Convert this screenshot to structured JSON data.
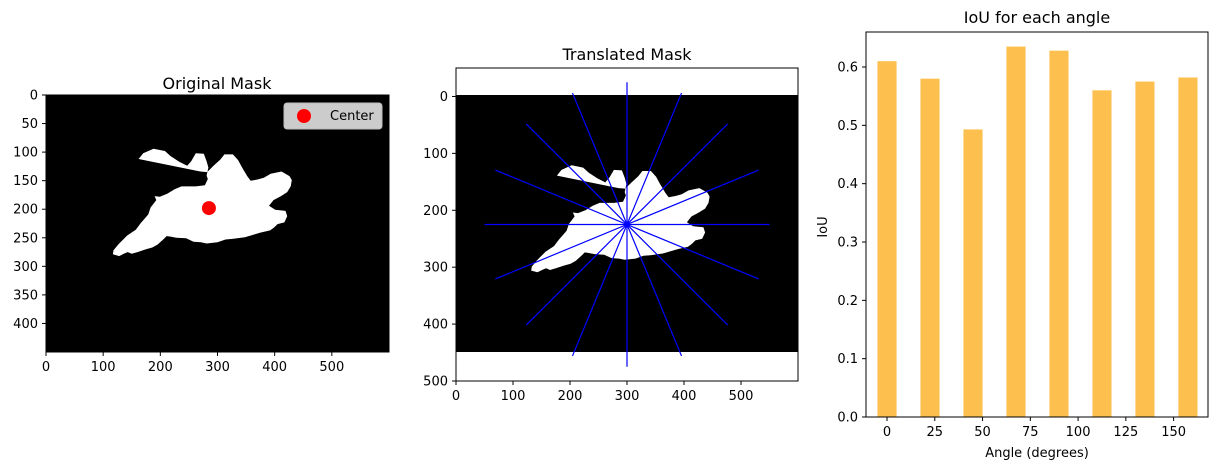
{
  "chart_data": [
    {
      "type": "image",
      "title": "Original Mask",
      "xlim": [
        0,
        600
      ],
      "ylim": [
        450,
        0
      ],
      "xticks": [
        0,
        100,
        200,
        300,
        400,
        500
      ],
      "yticks": [
        0,
        50,
        100,
        150,
        200,
        250,
        300,
        350,
        400
      ],
      "center": [
        285,
        198
      ],
      "legend": {
        "entries": [
          "Center"
        ],
        "position": "top-right",
        "marker_color": "#ff0000"
      },
      "mask_outline": [
        [
          162,
          112
        ],
        [
          170,
          102
        ],
        [
          188,
          94
        ],
        [
          208,
          98
        ],
        [
          218,
          107
        ],
        [
          233,
          117
        ],
        [
          247,
          124
        ],
        [
          254,
          116
        ],
        [
          262,
          102
        ],
        [
          276,
          103
        ],
        [
          281,
          116
        ],
        [
          284,
          127
        ],
        [
          281,
          141
        ],
        [
          283,
          147
        ],
        [
          278,
          158
        ],
        [
          262,
          160
        ],
        [
          237,
          160
        ],
        [
          225,
          165
        ],
        [
          212,
          173
        ],
        [
          199,
          178
        ],
        [
          190,
          177
        ],
        [
          193,
          184
        ],
        [
          183,
          197
        ],
        [
          179,
          209
        ],
        [
          173,
          216
        ],
        [
          166,
          224
        ],
        [
          157,
          236
        ],
        [
          142,
          246
        ],
        [
          127,
          261
        ],
        [
          118,
          272
        ],
        [
          117,
          279
        ],
        [
          128,
          282
        ],
        [
          136,
          278
        ],
        [
          143,
          275
        ],
        [
          150,
          278
        ],
        [
          160,
          275
        ],
        [
          175,
          270
        ],
        [
          186,
          267
        ],
        [
          195,
          262
        ],
        [
          205,
          253
        ],
        [
          211,
          247
        ],
        [
          218,
          248
        ],
        [
          228,
          250
        ],
        [
          245,
          251
        ],
        [
          258,
          257
        ],
        [
          271,
          258
        ],
        [
          281,
          260
        ],
        [
          300,
          258
        ],
        [
          314,
          253
        ],
        [
          326,
          252
        ],
        [
          348,
          249
        ],
        [
          375,
          241
        ],
        [
          392,
          237
        ],
        [
          399,
          232
        ],
        [
          405,
          226
        ],
        [
          417,
          223
        ],
        [
          422,
          212
        ],
        [
          419,
          203
        ],
        [
          401,
          201
        ],
        [
          390,
          194
        ],
        [
          398,
          184
        ],
        [
          411,
          177
        ],
        [
          422,
          170
        ],
        [
          428,
          160
        ],
        [
          430,
          149
        ],
        [
          426,
          142
        ],
        [
          412,
          134
        ],
        [
          393,
          138
        ],
        [
          381,
          145
        ],
        [
          370,
          148
        ],
        [
          358,
          150
        ],
        [
          352,
          142
        ],
        [
          343,
          127
        ],
        [
          336,
          114
        ],
        [
          327,
          104
        ],
        [
          312,
          104
        ],
        [
          305,
          113
        ],
        [
          293,
          124
        ],
        [
          282,
          135
        ],
        [
          270,
          134
        ]
      ]
    },
    {
      "type": "image",
      "title": "Translated Mask",
      "xlim": [
        0,
        600
      ],
      "ylim": [
        500,
        -50
      ],
      "xticks": [
        0,
        100,
        200,
        300,
        400,
        500
      ],
      "yticks": [
        0,
        100,
        200,
        300,
        400,
        500
      ],
      "center": [
        300,
        225
      ],
      "line_color": "#0000ff",
      "ray_length": 250,
      "ray_angles": [
        0,
        22.5,
        45,
        67.5,
        90,
        112.5,
        135,
        157.5
      ]
    },
    {
      "type": "bar",
      "title": "IoU for each angle",
      "xlabel": "Angle (degrees)",
      "ylabel": "IoU",
      "bar_color": "#fdbf4d",
      "x": [
        0,
        22.5,
        45,
        67.5,
        90,
        112.5,
        135,
        157.5
      ],
      "values": [
        0.61,
        0.58,
        0.493,
        0.635,
        0.628,
        0.56,
        0.575,
        0.582
      ],
      "xlim": [
        -11,
        168
      ],
      "ylim": [
        0,
        0.66
      ],
      "xticks": [
        0,
        25,
        50,
        75,
        100,
        125,
        150
      ],
      "yticks": [
        0.0,
        0.1,
        0.2,
        0.3,
        0.4,
        0.5,
        0.6
      ]
    }
  ]
}
